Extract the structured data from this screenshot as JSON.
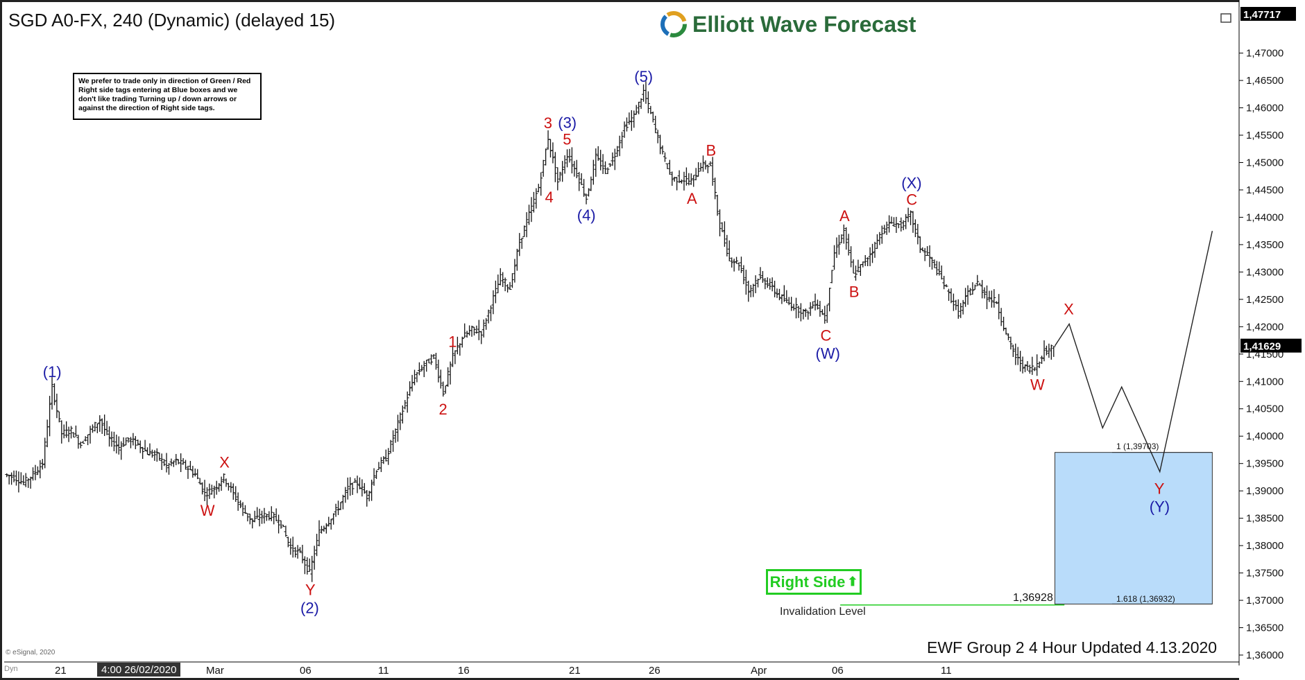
{
  "header": {
    "title": "SGD A0-FX, 240 (Dynamic) (delayed 15)",
    "logo_text": "Elliott Wave Forecast"
  },
  "notice": "We prefer to trade only in direction of Green / Red Right side tags entering at Blue boxes and we don't like trading Turning up / down arrows or against the direction of Right side tags.",
  "footer": "EWF Group 2 4 Hour Updated 4.13.2020",
  "copyright": "© eSignal, 2020",
  "right_side_tag": "Right Side",
  "invalidation_label": "Invalidation Level",
  "invalidation_value": "1,36928",
  "fib_top_label": "1 (1,39703)",
  "fib_bottom_label": "1.618 (1,36932)",
  "chart_data": {
    "type": "ohlc",
    "yaxis": {
      "min": 1.36,
      "max": 1.47717,
      "ticks": [
        "1,47000",
        "1,46500",
        "1,46000",
        "1,45500",
        "1,45000",
        "1,44500",
        "1,44000",
        "1,43500",
        "1,43000",
        "1,42500",
        "1,42000",
        "1,41500",
        "1,41000",
        "1,40500",
        "1,40000",
        "1,39500",
        "1,39000",
        "1,38500",
        "1,38000",
        "1,37500",
        "1,37000",
        "1,36500",
        "1,36000"
      ],
      "top_label": "1,47717",
      "current_price": "1,41629"
    },
    "xaxis": {
      "ticks": [
        "21",
        "4:00 26/02/2020",
        "Mar",
        "06",
        "11",
        "16",
        "21",
        "26",
        "Apr",
        "06",
        "11"
      ],
      "corner": "Dyn"
    },
    "price_path": [
      [
        0,
        1.393
      ],
      [
        1,
        1.3925
      ],
      [
        2,
        1.3915
      ],
      [
        3,
        1.393
      ],
      [
        4,
        1.395
      ],
      [
        5,
        1.409
      ],
      [
        6,
        1.4005
      ],
      [
        7,
        1.401
      ],
      [
        8,
        1.3985
      ],
      [
        9,
        1.401
      ],
      [
        10,
        1.403
      ],
      [
        11,
        1.3995
      ],
      [
        12,
        1.398
      ],
      [
        13,
        1.3995
      ],
      [
        14,
        1.3985
      ],
      [
        15,
        1.397
      ],
      [
        16,
        1.3965
      ],
      [
        17,
        1.3945
      ],
      [
        18,
        1.3955
      ],
      [
        19,
        1.3945
      ],
      [
        20,
        1.393
      ],
      [
        21,
        1.3895
      ],
      [
        22,
        1.3905
      ],
      [
        23,
        1.3925
      ],
      [
        24,
        1.3895
      ],
      [
        25,
        1.3865
      ],
      [
        26,
        1.3845
      ],
      [
        27,
        1.3855
      ],
      [
        28,
        1.3855
      ],
      [
        29,
        1.384
      ],
      [
        30,
        1.3795
      ],
      [
        31,
        1.3785
      ],
      [
        32,
        1.375
      ],
      [
        33,
        1.3825
      ],
      [
        34,
        1.3845
      ],
      [
        35,
        1.387
      ],
      [
        36,
        1.3905
      ],
      [
        37,
        1.3915
      ],
      [
        38,
        1.389
      ],
      [
        39,
        1.394
      ],
      [
        40,
        1.396
      ],
      [
        41,
        1.401
      ],
      [
        42,
        1.406
      ],
      [
        43,
        1.411
      ],
      [
        44,
        1.413
      ],
      [
        45,
        1.4145
      ],
      [
        46,
        1.408
      ],
      [
        47,
        1.4145
      ],
      [
        48,
        1.418
      ],
      [
        49,
        1.4195
      ],
      [
        50,
        1.419
      ],
      [
        51,
        1.424
      ],
      [
        52,
        1.429
      ],
      [
        53,
        1.427
      ],
      [
        54,
        1.4355
      ],
      [
        55,
        1.4405
      ],
      [
        56,
        1.4455
      ],
      [
        57,
        1.4545
      ],
      [
        58,
        1.4465
      ],
      [
        59,
        1.4515
      ],
      [
        60,
        1.448
      ],
      [
        61,
        1.4435
      ],
      [
        62,
        1.451
      ],
      [
        63,
        1.4485
      ],
      [
        64,
        1.4515
      ],
      [
        65,
        1.4565
      ],
      [
        66,
        1.4585
      ],
      [
        67,
        1.463
      ],
      [
        68,
        1.4575
      ],
      [
        69,
        1.4515
      ],
      [
        70,
        1.447
      ],
      [
        71,
        1.447
      ],
      [
        72,
        1.4465
      ],
      [
        73,
        1.4495
      ],
      [
        74,
        1.4495
      ],
      [
        75,
        1.4385
      ],
      [
        76,
        1.4325
      ],
      [
        77,
        1.4315
      ],
      [
        78,
        1.4265
      ],
      [
        79,
        1.429
      ],
      [
        80,
        1.428
      ],
      [
        81,
        1.426
      ],
      [
        82,
        1.4245
      ],
      [
        83,
        1.4235
      ],
      [
        84,
        1.4225
      ],
      [
        85,
        1.4245
      ],
      [
        86,
        1.4215
      ],
      [
        87,
        1.4335
      ],
      [
        88,
        1.4375
      ],
      [
        89,
        1.4295
      ],
      [
        90,
        1.4315
      ],
      [
        91,
        1.434
      ],
      [
        92,
        1.4375
      ],
      [
        93,
        1.439
      ],
      [
        94,
        1.4385
      ],
      [
        95,
        1.4405
      ],
      [
        96,
        1.4345
      ],
      [
        97,
        1.4325
      ],
      [
        98,
        1.4295
      ],
      [
        99,
        1.426
      ],
      [
        100,
        1.4225
      ],
      [
        101,
        1.426
      ],
      [
        102,
        1.428
      ],
      [
        103,
        1.4255
      ],
      [
        104,
        1.4245
      ],
      [
        105,
        1.4185
      ],
      [
        106,
        1.4145
      ],
      [
        107,
        1.4125
      ],
      [
        108,
        1.4125
      ],
      [
        109,
        1.4155
      ],
      [
        110,
        1.4165
      ]
    ],
    "projection": [
      [
        110,
        1.4165
      ],
      [
        111.5,
        1.4205
      ],
      [
        115,
        1.4015
      ],
      [
        117,
        1.409
      ],
      [
        121,
        1.3935
      ],
      [
        126.5,
        1.4375
      ]
    ],
    "blue_box": {
      "x_from": 110,
      "x_to": 126.5,
      "y_top": 1.39703,
      "y_bottom": 1.36932
    },
    "invalidation": {
      "x_from": 87.5,
      "x_to": 111,
      "y": 1.36928
    },
    "wave_labels": [
      {
        "text": "(1)",
        "i": 5,
        "price": 1.409,
        "color": "#1a1aa6",
        "pos": "above"
      },
      {
        "text": "W",
        "i": 21,
        "price": 1.3895,
        "color": "#cc1111",
        "pos": "below"
      },
      {
        "text": "X",
        "i": 23,
        "price": 1.3925,
        "color": "#cc1111",
        "pos": "above"
      },
      {
        "text": "Y",
        "i": 32,
        "price": 1.375,
        "color": "#cc1111",
        "pos": "below"
      },
      {
        "text": "(2)",
        "i": 32,
        "price": 1.375,
        "color": "#1a1aa6",
        "pos": "below2"
      },
      {
        "text": "1",
        "i": 47,
        "price": 1.4145,
        "color": "#cc1111",
        "pos": "above"
      },
      {
        "text": "2",
        "i": 46,
        "price": 1.408,
        "color": "#cc1111",
        "pos": "below"
      },
      {
        "text": "3",
        "i": 57,
        "price": 1.4545,
        "color": "#cc1111",
        "pos": "above"
      },
      {
        "text": "4",
        "i": 58,
        "price": 1.4465,
        "color": "#cc1111",
        "pos": "belowleft"
      },
      {
        "text": "5",
        "i": 59,
        "price": 1.4515,
        "color": "#cc1111",
        "pos": "above"
      },
      {
        "text": "(3)",
        "i": 59,
        "price": 1.4515,
        "color": "#1a1aa6",
        "pos": "above2"
      },
      {
        "text": "(4)",
        "i": 61,
        "price": 1.4435,
        "color": "#1a1aa6",
        "pos": "below"
      },
      {
        "text": "(5)",
        "i": 67,
        "price": 1.463,
        "color": "#1a1aa6",
        "pos": "above"
      },
      {
        "text": "A",
        "i": 72,
        "price": 1.4465,
        "color": "#cc1111",
        "pos": "below"
      },
      {
        "text": "B",
        "i": 74,
        "price": 1.4495,
        "color": "#cc1111",
        "pos": "above"
      },
      {
        "text": "C",
        "i": 86,
        "price": 1.4215,
        "color": "#cc1111",
        "pos": "below"
      },
      {
        "text": "(W)",
        "i": 86,
        "price": 1.4215,
        "color": "#1a1aa6",
        "pos": "below2"
      },
      {
        "text": "A",
        "i": 88,
        "price": 1.4375,
        "color": "#cc1111",
        "pos": "above"
      },
      {
        "text": "B",
        "i": 89,
        "price": 1.4295,
        "color": "#cc1111",
        "pos": "below"
      },
      {
        "text": "C",
        "i": 95,
        "price": 1.4405,
        "color": "#cc1111",
        "pos": "above"
      },
      {
        "text": "(X)",
        "i": 95,
        "price": 1.4405,
        "color": "#1a1aa6",
        "pos": "above2"
      },
      {
        "text": "W",
        "i": 108,
        "price": 1.4125,
        "color": "#cc1111",
        "pos": "below"
      },
      {
        "text": "X",
        "i": 111.5,
        "price": 1.4205,
        "color": "#cc1111",
        "pos": "above"
      },
      {
        "text": "Y",
        "i": 121,
        "price": 1.3935,
        "color": "#cc1111",
        "pos": "below"
      },
      {
        "text": "(Y)",
        "i": 121,
        "price": 1.3935,
        "color": "#1a1aa6",
        "pos": "below2"
      }
    ]
  }
}
